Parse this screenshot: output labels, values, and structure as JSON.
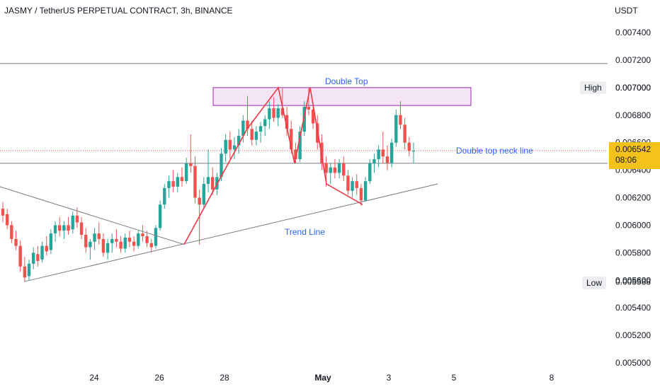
{
  "header": {
    "symbol_title": "JASMY / TetherUS PERPETUAL CONTRACT, 3h, BINANCE",
    "currency": "USDT"
  },
  "chart_data": {
    "type": "candlestick",
    "title": "JASMY / TetherUS PERPETUAL CONTRACT, 3h, BINANCE",
    "y_unit": "USDT",
    "ylim": [
      0.0049,
      0.0076
    ],
    "y_ticks": [
      "0.007400",
      "0.007200",
      "0.007000",
      "0.006800",
      "0.006600",
      "0.006400",
      "0.006200",
      "0.006000",
      "0.005800",
      "0.005600",
      "0.005400",
      "0.005200",
      "0.005000"
    ],
    "x_ticks": [
      "24",
      "26",
      "28",
      "May",
      "3",
      "5",
      "8"
    ],
    "high": {
      "label": "High",
      "value": "0.007000"
    },
    "low": {
      "label": "Low",
      "value": "0.005588"
    },
    "last_price": {
      "value": "0.006542",
      "countdown": "08:06"
    },
    "horizontal_lines": [
      0.007175,
      0.00645
    ],
    "colors": {
      "up": "#26a69a",
      "down": "#ef5350",
      "pattern": "#f23645",
      "zone": "#9c27b0",
      "line": "#787b86",
      "label": "#2962ff",
      "badge": "#f5c21b"
    },
    "annotations": {
      "double_top": "Double Top",
      "neck_line": "Double top neck line",
      "trend_line": "Trend Line"
    },
    "candles": [
      [
        0.00612,
        0.00617,
        0.00602,
        0.00607
      ],
      [
        0.00608,
        0.00612,
        0.00597,
        0.006
      ],
      [
        0.006,
        0.00603,
        0.00587,
        0.0059
      ],
      [
        0.0059,
        0.00596,
        0.00582,
        0.00585
      ],
      [
        0.00585,
        0.00589,
        0.00566,
        0.0057
      ],
      [
        0.0057,
        0.00577,
        0.00559,
        0.00562
      ],
      [
        0.00563,
        0.00575,
        0.0056,
        0.00572
      ],
      [
        0.00572,
        0.00584,
        0.00568,
        0.0058
      ],
      [
        0.00579,
        0.00585,
        0.0057,
        0.00574
      ],
      [
        0.00575,
        0.00588,
        0.00573,
        0.00585
      ],
      [
        0.00585,
        0.00592,
        0.00578,
        0.00581
      ],
      [
        0.00582,
        0.00597,
        0.00579,
        0.00594
      ],
      [
        0.00594,
        0.00603,
        0.00588,
        0.006
      ],
      [
        0.006,
        0.00606,
        0.00592,
        0.00596
      ],
      [
        0.00596,
        0.00603,
        0.0059,
        0.006
      ],
      [
        0.006,
        0.00606,
        0.00593,
        0.00596
      ],
      [
        0.00597,
        0.0061,
        0.00594,
        0.00607
      ],
      [
        0.00607,
        0.00613,
        0.00598,
        0.00602
      ],
      [
        0.00602,
        0.00606,
        0.0059,
        0.00593
      ],
      [
        0.00593,
        0.00598,
        0.0058,
        0.00584
      ],
      [
        0.00584,
        0.0059,
        0.00575,
        0.00588
      ],
      [
        0.00588,
        0.00598,
        0.00582,
        0.00594
      ],
      [
        0.00594,
        0.00602,
        0.00586,
        0.0059
      ],
      [
        0.0059,
        0.00594,
        0.00577,
        0.0058
      ],
      [
        0.0058,
        0.0059,
        0.00575,
        0.00587
      ],
      [
        0.00587,
        0.00594,
        0.0058,
        0.0059
      ],
      [
        0.0059,
        0.00597,
        0.00584,
        0.00588
      ],
      [
        0.00588,
        0.00592,
        0.0058,
        0.00583
      ],
      [
        0.00583,
        0.00594,
        0.0058,
        0.00591
      ],
      [
        0.00591,
        0.00596,
        0.00584,
        0.00588
      ],
      [
        0.00588,
        0.00592,
        0.00581,
        0.00585
      ],
      [
        0.00585,
        0.00596,
        0.00583,
        0.00594
      ],
      [
        0.00594,
        0.006,
        0.00588,
        0.00592
      ],
      [
        0.00592,
        0.00596,
        0.00584,
        0.00587
      ],
      [
        0.00587,
        0.0059,
        0.0058,
        0.00584
      ],
      [
        0.00585,
        0.006,
        0.00583,
        0.00598
      ],
      [
        0.00598,
        0.00618,
        0.00596,
        0.00615
      ],
      [
        0.00615,
        0.0063,
        0.00612,
        0.00627
      ],
      [
        0.00627,
        0.00636,
        0.0062,
        0.00632
      ],
      [
        0.00632,
        0.0064,
        0.00624,
        0.00628
      ],
      [
        0.00628,
        0.00638,
        0.00624,
        0.00635
      ],
      [
        0.00635,
        0.00642,
        0.00628,
        0.00632
      ],
      [
        0.00632,
        0.00649,
        0.0063,
        0.00645
      ],
      [
        0.00645,
        0.00666,
        0.00638,
        0.00643
      ],
      [
        0.00643,
        0.0065,
        0.00616,
        0.0062
      ],
      [
        0.0062,
        0.00626,
        0.00586,
        0.00615
      ],
      [
        0.00615,
        0.00635,
        0.00612,
        0.0063
      ],
      [
        0.0063,
        0.00655,
        0.00624,
        0.00635
      ],
      [
        0.00635,
        0.00642,
        0.00622,
        0.00626
      ],
      [
        0.00626,
        0.00638,
        0.00622,
        0.00635
      ],
      [
        0.00635,
        0.00656,
        0.00632,
        0.00652
      ],
      [
        0.00652,
        0.00666,
        0.00646,
        0.00662
      ],
      [
        0.00662,
        0.00668,
        0.00648,
        0.00655
      ],
      [
        0.00655,
        0.00664,
        0.00648,
        0.00658
      ],
      [
        0.00658,
        0.0067,
        0.00652,
        0.00665
      ],
      [
        0.00665,
        0.0068,
        0.0066,
        0.00676
      ],
      [
        0.00676,
        0.00694,
        0.00665,
        0.0067
      ],
      [
        0.0067,
        0.00676,
        0.00658,
        0.00662
      ],
      [
        0.00662,
        0.00672,
        0.00658,
        0.00668
      ],
      [
        0.00668,
        0.00675,
        0.0066,
        0.00672
      ],
      [
        0.00672,
        0.0068,
        0.00665,
        0.00677
      ],
      [
        0.00677,
        0.0069,
        0.0067,
        0.00685
      ],
      [
        0.00685,
        0.00693,
        0.00675,
        0.00678
      ],
      [
        0.00678,
        0.00688,
        0.00672,
        0.00685
      ],
      [
        0.00685,
        0.007,
        0.00678,
        0.0068
      ],
      [
        0.0068,
        0.00686,
        0.00665,
        0.0067
      ],
      [
        0.0067,
        0.00676,
        0.00652,
        0.00655
      ],
      [
        0.00655,
        0.0066,
        0.00645,
        0.00648
      ],
      [
        0.00648,
        0.00672,
        0.00646,
        0.00668
      ],
      [
        0.00668,
        0.0069,
        0.00665,
        0.00686
      ],
      [
        0.00686,
        0.007,
        0.0068,
        0.00684
      ],
      [
        0.00684,
        0.00688,
        0.0067,
        0.00674
      ],
      [
        0.00674,
        0.0068,
        0.00655,
        0.0066
      ],
      [
        0.0066,
        0.00666,
        0.0064,
        0.00645
      ],
      [
        0.00645,
        0.0065,
        0.00628,
        0.00638
      ],
      [
        0.00638,
        0.00645,
        0.0063,
        0.00642
      ],
      [
        0.00642,
        0.00648,
        0.00634,
        0.00638
      ],
      [
        0.00638,
        0.00648,
        0.00634,
        0.00645
      ],
      [
        0.00645,
        0.0065,
        0.00632,
        0.00636
      ],
      [
        0.00636,
        0.0064,
        0.00622,
        0.00625
      ],
      [
        0.00625,
        0.00635,
        0.0062,
        0.00632
      ],
      [
        0.00632,
        0.00637,
        0.00622,
        0.00627
      ],
      [
        0.00627,
        0.0063,
        0.00614,
        0.00618
      ],
      [
        0.00618,
        0.00635,
        0.00617,
        0.00632
      ],
      [
        0.00632,
        0.00648,
        0.0063,
        0.00645
      ],
      [
        0.00645,
        0.00652,
        0.00638,
        0.00648
      ],
      [
        0.00648,
        0.00658,
        0.00642,
        0.00655
      ],
      [
        0.00655,
        0.00668,
        0.00645,
        0.0065
      ],
      [
        0.0065,
        0.00658,
        0.0064,
        0.00645
      ],
      [
        0.00645,
        0.00663,
        0.00642,
        0.0066
      ],
      [
        0.0066,
        0.00684,
        0.00657,
        0.0068
      ],
      [
        0.0068,
        0.0069,
        0.0067,
        0.00673
      ],
      [
        0.00673,
        0.00678,
        0.00655,
        0.0066
      ],
      [
        0.0066,
        0.00664,
        0.0065,
        0.00654
      ],
      [
        0.00654,
        0.0066,
        0.00645,
        0.00654
      ]
    ]
  }
}
